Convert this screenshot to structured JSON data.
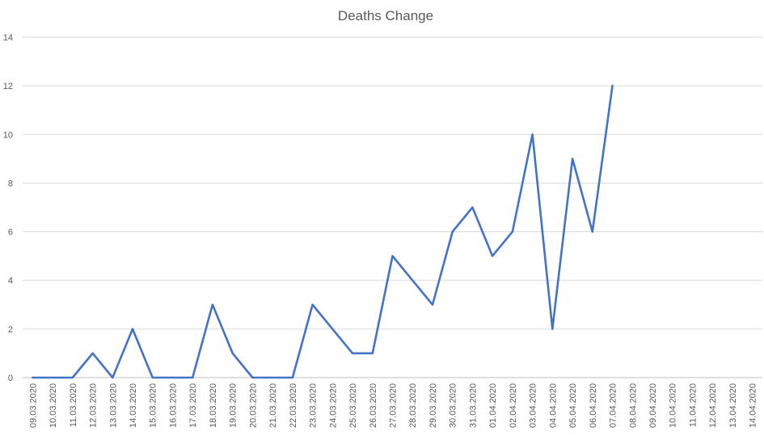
{
  "chart_data": {
    "type": "line",
    "title": "Deaths Change",
    "xlabel": "",
    "ylabel": "",
    "ylim": [
      0,
      14
    ],
    "yticks": [
      0,
      2,
      4,
      6,
      8,
      10,
      12,
      14
    ],
    "grid": true,
    "legend": "none",
    "categories": [
      "09.03.2020",
      "10.03.2020",
      "11.03.2020",
      "12.03.2020",
      "13.03.2020",
      "14.03.2020",
      "15.03.2020",
      "16.03.2020",
      "17.03.2020",
      "18.03.2020",
      "19.03.2020",
      "20.03.2020",
      "21.03.2020",
      "22.03.2020",
      "23.03.2020",
      "24.03.2020",
      "25.03.2020",
      "26.03.2020",
      "27.03.2020",
      "28.03.2020",
      "29.03.2020",
      "30.03.2020",
      "31.03.2020",
      "01.04.2020",
      "02.04.2020",
      "03.04.2020",
      "04.04.2020",
      "05.04.2020",
      "06.04.2020",
      "07.04.2020",
      "08.04.2020",
      "09.04.2020",
      "10.04.2020",
      "11.04.2020",
      "12.04.2020",
      "13.04.2020",
      "14.04.2020"
    ],
    "series": [
      {
        "values": [
          0,
          0,
          0,
          1,
          0,
          2,
          0,
          0,
          0,
          3,
          1,
          0,
          0,
          0,
          3,
          2,
          1,
          1,
          5,
          4,
          3,
          6,
          7,
          5,
          6,
          10,
          2,
          9,
          6,
          12,
          null,
          null,
          null,
          null,
          null,
          null,
          null
        ],
        "color": "#4472c4"
      }
    ]
  }
}
